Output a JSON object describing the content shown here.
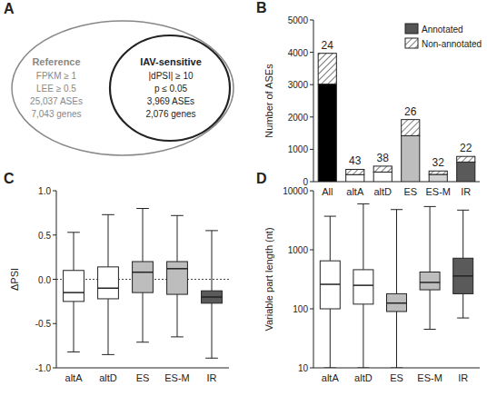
{
  "diagram": {
    "title": "A",
    "outer": {
      "title": "Reference",
      "lines": [
        "FPKM ≥ 1",
        "LEE ≥ 0.5",
        "25,037 ASEs",
        "7,043 genes"
      ]
    },
    "inner": {
      "title": "IAV-sensitive",
      "lines": [
        "|dPSI| ≥ 10",
        "p ≤ 0.05",
        "3,969 ASEs",
        "2,076 genes"
      ]
    }
  },
  "chart_data": [
    {
      "type": "bar",
      "title": "B",
      "stacked": true,
      "legend": "top-right",
      "categories": [
        "All",
        "altA",
        "altD",
        "ES",
        "ES-M",
        "IR"
      ],
      "series": [
        {
          "name": "Annotated",
          "color": "#555555",
          "colors": [
            "#000000",
            "#ffffff",
            "#ffffff",
            "#bdbdbd",
            "#d4d4d4",
            "#5a5a5a"
          ],
          "values": [
            3016,
            217,
            298,
            1421,
            224,
            608
          ]
        },
        {
          "name": "Non-annotated",
          "color": "#ffffff",
          "values": [
            953,
            163,
            182,
            499,
            106,
            172
          ]
        }
      ],
      "percent_labels": [
        24,
        43,
        38,
        26,
        32,
        22
      ],
      "y_label": "Number of ASEs",
      "ylim": [
        0,
        5000
      ],
      "yticks": [
        0,
        1000,
        2000,
        3000,
        4000,
        5000
      ]
    },
    {
      "type": "box",
      "title": "C",
      "categories": [
        "altA",
        "altD",
        "ES",
        "ES-M",
        "IR"
      ],
      "colors": [
        "#ffffff",
        "#ffffff",
        "#bdbdbd",
        "#bdbdbd",
        "#5a5a5a"
      ],
      "min": [
        -0.82,
        -0.85,
        -0.71,
        -0.65,
        -0.89
      ],
      "q1": [
        -0.25,
        -0.22,
        -0.15,
        -0.17,
        -0.27
      ],
      "median": [
        -0.15,
        -0.1,
        0.08,
        0.12,
        -0.2
      ],
      "q3": [
        0.1,
        0.14,
        0.2,
        0.2,
        -0.13
      ],
      "max": [
        0.53,
        0.73,
        0.8,
        0.72,
        0.55
      ],
      "y_label": "ΔPSI",
      "ylim": [
        -1,
        1
      ],
      "yticks": [
        {
          "value": -1,
          "label": "-1.0"
        },
        {
          "value": -0.5,
          "label": "-0.5"
        },
        {
          "value": 0,
          "label": "0.0"
        },
        {
          "value": 0.5,
          "label": "0.5"
        },
        {
          "value": 1,
          "label": "1.0"
        }
      ]
    },
    {
      "type": "box",
      "title": "D",
      "log": "y",
      "categories": [
        "altA",
        "altD",
        "ES",
        "ES-M",
        "IR"
      ],
      "colors": [
        "#ffffff",
        "#ffffff",
        "#bdbdbd",
        "#bdbdbd",
        "#5a5a5a"
      ],
      "min": [
        10,
        10,
        10,
        45,
        70
      ],
      "q1": [
        100,
        120,
        90,
        210,
        180
      ],
      "median": [
        260,
        250,
        125,
        280,
        360
      ],
      "q3": [
        650,
        460,
        180,
        420,
        720
      ],
      "max": [
        3700,
        6000,
        4800,
        5400,
        4700
      ],
      "y_label": "Variable part length (nt)",
      "ylim": [
        10,
        10000
      ],
      "yticks": [
        10,
        100,
        1000,
        10000
      ]
    }
  ]
}
